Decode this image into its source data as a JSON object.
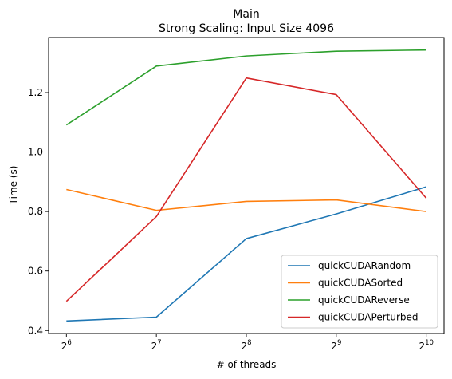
{
  "chart_data": {
    "type": "line",
    "title": "Main",
    "subtitle": "Strong Scaling: Input Size 4096",
    "xlabel": "# of threads",
    "ylabel": "Time (s)",
    "x_scale": "log2",
    "x": [
      64,
      128,
      256,
      512,
      1024
    ],
    "x_tick_labels": [
      {
        "base": "2",
        "exp": "6"
      },
      {
        "base": "2",
        "exp": "7"
      },
      {
        "base": "2",
        "exp": "8"
      },
      {
        "base": "2",
        "exp": "9"
      },
      {
        "base": "2",
        "exp": "10"
      }
    ],
    "ylim": [
      0.39,
      1.385
    ],
    "y_ticks": [
      0.4,
      0.6,
      0.8,
      1.0,
      1.2
    ],
    "y_tick_labels": [
      "0.4",
      "0.6",
      "0.8",
      "1.0",
      "1.2"
    ],
    "grid": false,
    "legend_position": "lower-right",
    "series": [
      {
        "name": "quickCUDARandom",
        "color": "#1f77b4",
        "values": [
          0.432,
          0.445,
          0.709,
          0.792,
          0.883
        ]
      },
      {
        "name": "quickCUDASorted",
        "color": "#ff7f0e",
        "values": [
          0.874,
          0.804,
          0.834,
          0.839,
          0.8
        ]
      },
      {
        "name": "quickCUDAReverse",
        "color": "#2ca02c",
        "values": [
          1.091,
          1.289,
          1.323,
          1.339,
          1.343
        ]
      },
      {
        "name": "quickCUDAPerturbed",
        "color": "#d62728",
        "values": [
          0.498,
          0.783,
          1.249,
          1.193,
          0.845
        ]
      }
    ]
  }
}
